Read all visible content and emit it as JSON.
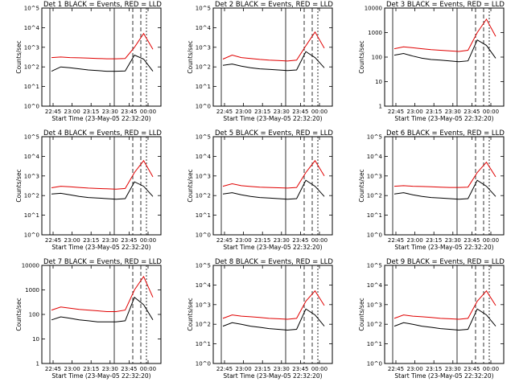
{
  "chart_data": [
    {
      "type": "line",
      "title": "Det 1   BLACK = Events, RED = LLD",
      "ylabel": "Counts/sec",
      "xlabel": "Start Time (23-May-05 22:32:20)",
      "xticks": [
        "22:45",
        "23:00",
        "23:15",
        "23:30",
        "23:45",
        "00:00"
      ],
      "yscale": "log",
      "yticks": [
        "10^0",
        "10^1",
        "10^2",
        "10^3",
        "10^4",
        "10^5"
      ],
      "ylim": [
        1,
        100000
      ],
      "series": [
        {
          "color": "#000000",
          "values": [
            60,
            100,
            90,
            80,
            70,
            65,
            60,
            60,
            62,
            400,
            250,
            60
          ]
        },
        {
          "color": "#e00000",
          "values": [
            300,
            320,
            300,
            290,
            280,
            270,
            260,
            260,
            270,
            1000,
            5000,
            800
          ]
        }
      ]
    },
    {
      "type": "line",
      "title": "Det 2   BLACK = Events, RED = LLD",
      "ylabel": "Counts/sec",
      "xlabel": "Start Time (23-May-05 22:32:20)",
      "xticks": [
        "22:45",
        "23:00",
        "23:15",
        "23:30",
        "23:45",
        "00:00"
      ],
      "yscale": "log",
      "yticks": [
        "10^0",
        "10^1",
        "10^2",
        "10^3",
        "10^4",
        "10^5"
      ],
      "ylim": [
        1,
        100000
      ],
      "series": [
        {
          "color": "#000000",
          "values": [
            120,
            140,
            110,
            90,
            80,
            75,
            70,
            65,
            70,
            600,
            300,
            90
          ]
        },
        {
          "color": "#e00000",
          "values": [
            250,
            400,
            300,
            270,
            240,
            220,
            210,
            200,
            220,
            1200,
            6000,
            900
          ]
        }
      ]
    },
    {
      "type": "line",
      "title": "Det 3   BLACK = Events, RED = LLD",
      "ylabel": "Counts/sec",
      "xlabel": "Start Time (23-May-05 22:32:20)",
      "xticks": [
        "22:45",
        "23:00",
        "23:15",
        "23:30",
        "23:45",
        "00:00"
      ],
      "yscale": "log",
      "yticks": [
        "1",
        "10",
        "100",
        "1000",
        "10000"
      ],
      "ylim": [
        1,
        10000
      ],
      "series": [
        {
          "color": "#000000",
          "values": [
            120,
            140,
            110,
            90,
            80,
            75,
            70,
            65,
            70,
            500,
            300,
            90
          ]
        },
        {
          "color": "#e00000",
          "values": [
            220,
            260,
            240,
            220,
            200,
            190,
            180,
            170,
            190,
            1000,
            3500,
            700
          ]
        }
      ]
    },
    {
      "type": "line",
      "title": "Det 4   BLACK = Events, RED = LLD",
      "ylabel": "Counts/sec",
      "xlabel": "Start Time (23-May-05 22:32:20)",
      "xticks": [
        "22:45",
        "23:00",
        "23:15",
        "23:30",
        "23:45",
        "00:00"
      ],
      "yscale": "log",
      "yticks": [
        "10^0",
        "10^1",
        "10^2",
        "10^3",
        "10^4",
        "10^5"
      ],
      "ylim": [
        1,
        100000
      ],
      "series": [
        {
          "color": "#000000",
          "values": [
            120,
            130,
            110,
            90,
            80,
            75,
            70,
            65,
            70,
            500,
            300,
            90
          ]
        },
        {
          "color": "#e00000",
          "values": [
            250,
            300,
            280,
            260,
            240,
            230,
            220,
            210,
            230,
            1500,
            6000,
            900
          ]
        }
      ]
    },
    {
      "type": "line",
      "title": "Det 5   BLACK = Events, RED = LLD",
      "ylabel": "Counts/sec",
      "xlabel": "Start Time (23-May-05 22:32:20)",
      "xticks": [
        "22:45",
        "23:00",
        "23:15",
        "23:30",
        "23:45",
        "00:00"
      ],
      "yscale": "log",
      "yticks": [
        "10^0",
        "10^1",
        "10^2",
        "10^3",
        "10^4",
        "10^5"
      ],
      "ylim": [
        1,
        100000
      ],
      "series": [
        {
          "color": "#000000",
          "values": [
            120,
            140,
            110,
            90,
            80,
            75,
            70,
            65,
            70,
            600,
            300,
            90
          ]
        },
        {
          "color": "#e00000",
          "values": [
            300,
            400,
            320,
            290,
            270,
            260,
            250,
            240,
            260,
            1500,
            6000,
            1000
          ]
        }
      ]
    },
    {
      "type": "line",
      "title": "Det 6   BLACK = Events, RED = LLD",
      "ylabel": "Counts/sec",
      "xlabel": "Start Time (23-May-05 22:32:20)",
      "xticks": [
        "22:45",
        "23:00",
        "23:15",
        "23:30",
        "23:45",
        "00:00"
      ],
      "yscale": "log",
      "yticks": [
        "10^0",
        "10^1",
        "10^2",
        "10^3",
        "10^4",
        "10^5"
      ],
      "ylim": [
        1,
        100000
      ],
      "series": [
        {
          "color": "#000000",
          "values": [
            120,
            140,
            110,
            90,
            80,
            75,
            70,
            65,
            70,
            600,
            300,
            90
          ]
        },
        {
          "color": "#e00000",
          "values": [
            300,
            320,
            300,
            290,
            280,
            270,
            260,
            260,
            270,
            1500,
            5000,
            900
          ]
        }
      ]
    },
    {
      "type": "line",
      "title": "Det 7   BLACK = Events, RED = LLD",
      "ylabel": "Counts/sec",
      "xlabel": "Start Time (23-May-05 22:32:20)",
      "xticks": [
        "22:45",
        "23:00",
        "23:15",
        "23:30",
        "23:45",
        "00:00"
      ],
      "yscale": "log",
      "yticks": [
        "1",
        "10",
        "100",
        "1000",
        "10000"
      ],
      "ylim": [
        1,
        10000
      ],
      "series": [
        {
          "color": "#000000",
          "values": [
            60,
            80,
            70,
            60,
            55,
            50,
            50,
            50,
            55,
            500,
            250,
            60
          ]
        },
        {
          "color": "#e00000",
          "values": [
            150,
            200,
            180,
            160,
            150,
            140,
            130,
            130,
            150,
            1000,
            3500,
            500
          ]
        }
      ]
    },
    {
      "type": "line",
      "title": "Det 8   BLACK = Events, RED = LLD",
      "ylabel": "Counts/sec",
      "xlabel": "Start Time (23-May-05 22:32:20)",
      "xticks": [
        "22:45",
        "23:00",
        "23:15",
        "23:30",
        "23:45",
        "00:00"
      ],
      "yscale": "log",
      "yticks": [
        "10^0",
        "10^1",
        "10^2",
        "10^3",
        "10^4",
        "10^5"
      ],
      "ylim": [
        1,
        100000
      ],
      "series": [
        {
          "color": "#000000",
          "values": [
            80,
            120,
            100,
            80,
            70,
            60,
            55,
            50,
            55,
            600,
            300,
            80
          ]
        },
        {
          "color": "#e00000",
          "values": [
            200,
            300,
            260,
            240,
            220,
            200,
            190,
            180,
            200,
            1500,
            5000,
            900
          ]
        }
      ]
    },
    {
      "type": "line",
      "title": "Det 9   BLACK = Events, RED = LLD",
      "ylabel": "Counts/sec",
      "xlabel": "Start Time (23-May-05 22:32:20)",
      "xticks": [
        "22:45",
        "23:00",
        "23:15",
        "23:30",
        "23:45",
        "00:00"
      ],
      "yscale": "log",
      "yticks": [
        "10^0",
        "10^1",
        "10^2",
        "10^3",
        "10^4",
        "10^5"
      ],
      "ylim": [
        1,
        100000
      ],
      "series": [
        {
          "color": "#000000",
          "values": [
            80,
            120,
            100,
            80,
            70,
            60,
            55,
            50,
            55,
            600,
            300,
            80
          ]
        },
        {
          "color": "#e00000",
          "values": [
            200,
            300,
            260,
            240,
            220,
            200,
            190,
            180,
            200,
            1500,
            5000,
            900
          ]
        }
      ]
    }
  ]
}
